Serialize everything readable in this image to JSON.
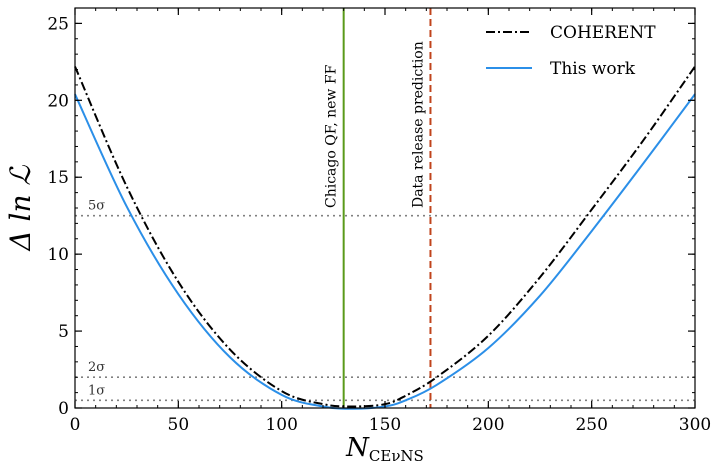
{
  "chart_data": {
    "type": "line",
    "xlabel_main": "N",
    "xlabel_sub": "CEνNS",
    "ylabel_main": "Δ ln ",
    "ylabel_script": "ℒ",
    "xlim": [
      0,
      300
    ],
    "ylim": [
      0,
      26
    ],
    "x_ticks": [
      0,
      50,
      100,
      150,
      200,
      250,
      300
    ],
    "y_ticks": [
      0,
      5,
      10,
      15,
      20,
      25
    ],
    "series": [
      {
        "name": "COHERENT",
        "style": "dashdot",
        "color": "#000000",
        "x": [
          0,
          25,
          50,
          75,
          100,
          120,
          135,
          150,
          160,
          175,
          200,
          225,
          250,
          275,
          300
        ],
        "y": [
          22.2,
          14.4,
          8.2,
          3.8,
          1.1,
          0.25,
          0.1,
          0.25,
          0.8,
          2.0,
          4.7,
          8.5,
          12.9,
          17.4,
          22.2
        ]
      },
      {
        "name": "This work",
        "style": "solid",
        "color": "#2b8fe8",
        "x": [
          0,
          25,
          50,
          75,
          100,
          120,
          135,
          150,
          160,
          175,
          200,
          225,
          250,
          275,
          300
        ],
        "y": [
          20.4,
          13.1,
          7.4,
          3.3,
          0.85,
          0.1,
          -0.05,
          0.1,
          0.5,
          1.5,
          3.9,
          7.3,
          11.5,
          15.9,
          20.4
        ]
      }
    ],
    "hlines": [
      {
        "y": 12.5,
        "label": "5σ",
        "style": "dotted",
        "color": "#808080"
      },
      {
        "y": 2.0,
        "label": "2σ",
        "style": "dotted",
        "color": "#808080"
      },
      {
        "y": 0.5,
        "label": "1σ",
        "style": "dotted",
        "color": "#808080"
      }
    ],
    "vlines": [
      {
        "x": 130,
        "label": "Chicago QF, new FF",
        "style": "solid",
        "color": "#5a9a1a"
      },
      {
        "x": 172,
        "label": "Data release prediction",
        "style": "dashed",
        "color": "#c0441c"
      }
    ],
    "legend": {
      "position": "top-right",
      "entries": [
        "COHERENT",
        "This work"
      ]
    }
  }
}
